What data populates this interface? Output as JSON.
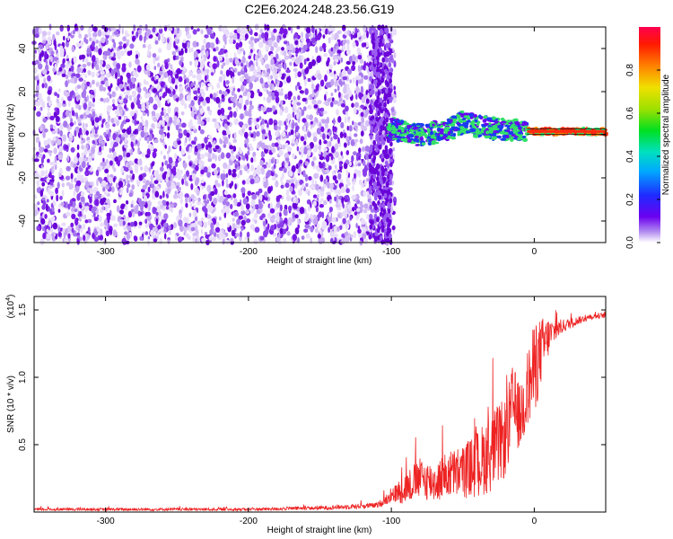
{
  "title": "C2E6.2024.248.23.56.G19",
  "colors": {
    "speckle": "#7a16e6",
    "snr_line": "#ee2222",
    "track_green": "#33e06a",
    "track_blue": "#1a3cf0"
  },
  "chart_data": [
    {
      "type": "heatmap",
      "xlabel": "Height of straight line (km)",
      "ylabel": "Frequency (Hz)",
      "xlim": [
        -350,
        50
      ],
      "ylim": [
        -50,
        50
      ],
      "x_ticks": [
        -300,
        -200,
        -100,
        0
      ],
      "y_ticks": [
        -40,
        -20,
        0,
        20,
        40
      ],
      "description_series": {
        "noise_region_x": [
          -350,
          -100
        ],
        "signal_track": [
          {
            "x": -100,
            "y": 3
          },
          {
            "x": -90,
            "y": 1
          },
          {
            "x": -80,
            "y": 0
          },
          {
            "x": -70,
            "y": 1
          },
          {
            "x": -60,
            "y": 2
          },
          {
            "x": -50,
            "y": 6
          },
          {
            "x": -40,
            "y": 4
          },
          {
            "x": -30,
            "y": 3
          },
          {
            "x": -20,
            "y": 2
          },
          {
            "x": -10,
            "y": 2
          },
          {
            "x": 0,
            "y": 1.5
          },
          {
            "x": 25,
            "y": 1.5
          },
          {
            "x": 50,
            "y": 1.5
          }
        ]
      },
      "colorbar": {
        "label": "Normalized spectral amplitude",
        "range": [
          0,
          1
        ],
        "ticks": [
          "0.0",
          "0.2",
          "0.4",
          "0.6",
          "0.8"
        ]
      }
    },
    {
      "type": "line",
      "xlabel": "Height of straight line (km)",
      "ylabel": "SNR (10 * v/v)",
      "multiplier_label": "(x10",
      "multiplier_exp": "4",
      "multiplier_close": ")",
      "xlim": [
        -350,
        50
      ],
      "ylim": [
        0,
        1.6
      ],
      "x_ticks": [
        -300,
        -200,
        -100,
        0
      ],
      "y_ticks": [
        "0.5",
        "1.0",
        "1.5"
      ],
      "series": [
        {
          "x": [
            -350,
            -300,
            -250,
            -200,
            -150,
            -110,
            -100,
            -90,
            -80,
            -70,
            -60,
            -50,
            -40,
            -30,
            -20,
            -15,
            -10,
            -5,
            0,
            5,
            10,
            15,
            20,
            25,
            30,
            40,
            50
          ],
          "y": [
            0.02,
            0.02,
            0.02,
            0.02,
            0.03,
            0.05,
            0.12,
            0.18,
            0.25,
            0.22,
            0.28,
            0.3,
            0.35,
            0.45,
            0.55,
            0.8,
            0.7,
            0.9,
            1.05,
            1.2,
            1.3,
            1.35,
            1.38,
            1.4,
            1.42,
            1.45,
            1.46
          ],
          "amp": [
            0.01,
            0.01,
            0.01,
            0.01,
            0.015,
            0.02,
            0.05,
            0.12,
            0.15,
            0.15,
            0.18,
            0.2,
            0.25,
            0.3,
            0.3,
            0.3,
            0.25,
            0.3,
            0.35,
            0.25,
            0.15,
            0.08,
            0.05,
            0.04,
            0.03,
            0.02,
            0.02
          ]
        }
      ]
    }
  ]
}
